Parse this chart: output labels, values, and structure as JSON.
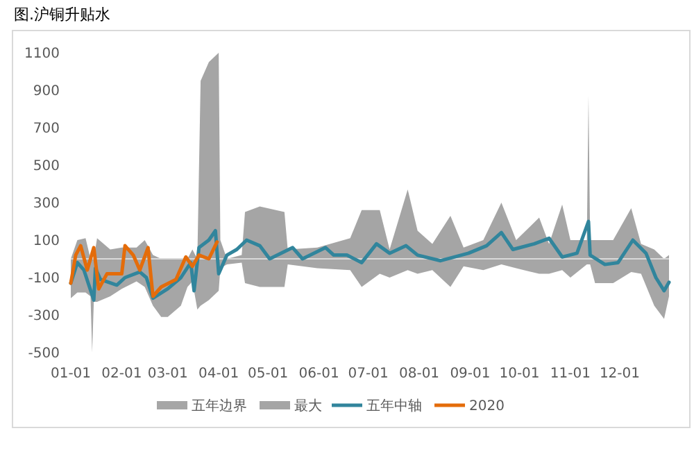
{
  "chart_data": {
    "type": "line",
    "title": "图.沪铜升贴水",
    "ylim": [
      -500,
      1100
    ],
    "yticks": [
      -500,
      -300,
      -100,
      100,
      300,
      500,
      700,
      900,
      1100
    ],
    "xlim": [
      "--01-01",
      "--12-31"
    ],
    "xticks": [
      {
        "value": "--01-01",
        "label": "01-01"
      },
      {
        "value": "--02-01",
        "label": "02-01"
      },
      {
        "value": "--03-01",
        "label": "03-01"
      },
      {
        "value": "--04-01",
        "label": "04-01"
      },
      {
        "value": "--05-01",
        "label": "05-01"
      },
      {
        "value": "--06-01",
        "label": "06-01"
      },
      {
        "value": "--07-01",
        "label": "07-01"
      },
      {
        "value": "--08-01",
        "label": "08-01"
      },
      {
        "value": "--09-01",
        "label": "09-01"
      },
      {
        "value": "--10-01",
        "label": "10-01"
      },
      {
        "value": "--11-01",
        "label": "11-01"
      },
      {
        "value": "--12-01",
        "label": "12-01"
      }
    ],
    "grid": false,
    "legend": "bottom",
    "series": [
      {
        "name": "五年边界",
        "type": "area",
        "color": "#a6a6a6",
        "x": [
          "--01-01",
          "--01-05",
          "--01-10",
          "--01-13",
          "--01-14",
          "--01-15",
          "--01-17",
          "--01-25",
          "--02-01",
          "--02-10",
          "--02-15",
          "--02-20",
          "--02-25",
          "--03-01",
          "--03-09",
          "--03-13",
          "--03-16",
          "--03-19",
          "--03-21",
          "--03-26",
          "--04-01",
          "--04-02",
          "--04-06",
          "--04-15",
          "--04-17",
          "--04-26",
          "--05-11",
          "--05-13",
          "--05-31",
          "--06-20",
          "--06-27",
          "--07-08",
          "--07-14",
          "--07-25",
          "--07-31",
          "--08-09",
          "--08-20",
          "--08-28",
          "--09-09",
          "--09-20",
          "--09-29",
          "--10-13",
          "--10-19",
          "--10-27",
          "--11-01",
          "--11-11",
          "--11-12",
          "--11-13",
          "--11-16",
          "--11-27",
          "--12-08",
          "--12-14",
          "--12-22",
          "--12-28",
          "--12-31"
        ],
        "values": [
          -210,
          -180,
          -180,
          -200,
          -500,
          -230,
          -230,
          -200,
          -160,
          -120,
          -150,
          -250,
          -310,
          -310,
          -250,
          -150,
          -120,
          -270,
          -250,
          -220,
          -170,
          -50,
          -30,
          -20,
          -130,
          -150,
          -150,
          -30,
          -50,
          -60,
          -150,
          -80,
          -100,
          -60,
          -80,
          -60,
          -150,
          -40,
          -60,
          -30,
          -50,
          -80,
          -80,
          -60,
          -100,
          -30,
          -30,
          -30,
          -130,
          -130,
          -70,
          -80,
          -250,
          -320,
          -200
        ]
      },
      {
        "name": "最大",
        "type": "area",
        "color": "#a5a5a5",
        "x": [
          "--01-01",
          "--01-05",
          "--01-10",
          "--01-13",
          "--01-14",
          "--01-15",
          "--01-17",
          "--01-25",
          "--02-01",
          "--02-10",
          "--02-15",
          "--02-20",
          "--02-25",
          "--03-01",
          "--03-09",
          "--03-13",
          "--03-16",
          "--03-19",
          "--03-21",
          "--03-26",
          "--04-01",
          "--04-02",
          "--04-06",
          "--04-15",
          "--04-17",
          "--04-26",
          "--05-11",
          "--05-13",
          "--05-31",
          "--06-20",
          "--06-27",
          "--07-08",
          "--07-14",
          "--07-25",
          "--07-31",
          "--08-09",
          "--08-20",
          "--08-28",
          "--09-09",
          "--09-20",
          "--09-29",
          "--10-13",
          "--10-19",
          "--10-27",
          "--11-01",
          "--11-11",
          "--11-12",
          "--11-13",
          "--11-16",
          "--11-27",
          "--12-08",
          "--12-14",
          "--12-22",
          "--12-28",
          "--12-31"
        ],
        "values": [
          0,
          100,
          110,
          0,
          0,
          0,
          110,
          50,
          60,
          60,
          100,
          20,
          0,
          0,
          0,
          0,
          50,
          0,
          950,
          1050,
          1100,
          100,
          0,
          20,
          250,
          280,
          250,
          50,
          60,
          110,
          260,
          260,
          50,
          370,
          150,
          80,
          230,
          60,
          100,
          300,
          100,
          220,
          80,
          290,
          100,
          100,
          870,
          100,
          100,
          100,
          270,
          80,
          50,
          0,
          20
        ]
      },
      {
        "name": "五年中轴",
        "color": "#31859c",
        "x": [
          "--01-01",
          "--01-05",
          "--01-09",
          "--01-15",
          "--01-16",
          "--01-19",
          "--01-29",
          "--02-03",
          "--02-12",
          "--02-16",
          "--02-20",
          "--03-01",
          "--03-09",
          "--03-15",
          "--03-17",
          "--03-20",
          "--03-26",
          "--03-30",
          "--04-01",
          "--04-06",
          "--04-12",
          "--04-18",
          "--04-26",
          "--05-02",
          "--05-16",
          "--05-22",
          "--06-05",
          "--06-10",
          "--06-18",
          "--06-27",
          "--07-06",
          "--07-14",
          "--07-24",
          "--07-31",
          "--08-14",
          "--08-31",
          "--09-11",
          "--09-20",
          "--09-27",
          "--10-10",
          "--10-19",
          "--10-27",
          "--11-05",
          "--11-12",
          "--11-13",
          "--11-22",
          "--11-30",
          "--12-09",
          "--12-17",
          "--12-23",
          "--12-28",
          "--12-31"
        ],
        "values": [
          -130,
          -20,
          -60,
          -220,
          -50,
          -110,
          -140,
          -100,
          -70,
          -100,
          -210,
          -160,
          -100,
          -20,
          -170,
          60,
          100,
          150,
          -80,
          20,
          50,
          100,
          70,
          0,
          60,
          0,
          60,
          20,
          20,
          -20,
          80,
          30,
          70,
          20,
          -10,
          30,
          70,
          140,
          50,
          80,
          110,
          10,
          30,
          200,
          20,
          -30,
          -20,
          100,
          30,
          -100,
          -170,
          -125
        ]
      },
      {
        "name": "2020",
        "color": "#e46c0a",
        "x": [
          "--01-01",
          "--01-04",
          "--01-07",
          "--01-11",
          "--01-15",
          "--01-18",
          "--01-23",
          "--02-01",
          "--02-03",
          "--02-08",
          "--02-12",
          "--02-17",
          "--02-20",
          "--02-25",
          "--03-06",
          "--03-12",
          "--03-16",
          "--03-20",
          "--03-26",
          "--03-31"
        ],
        "values": [
          -130,
          20,
          70,
          -60,
          60,
          -160,
          -80,
          -80,
          70,
          20,
          -60,
          60,
          -200,
          -150,
          -110,
          10,
          -40,
          20,
          0,
          90
        ]
      }
    ]
  }
}
